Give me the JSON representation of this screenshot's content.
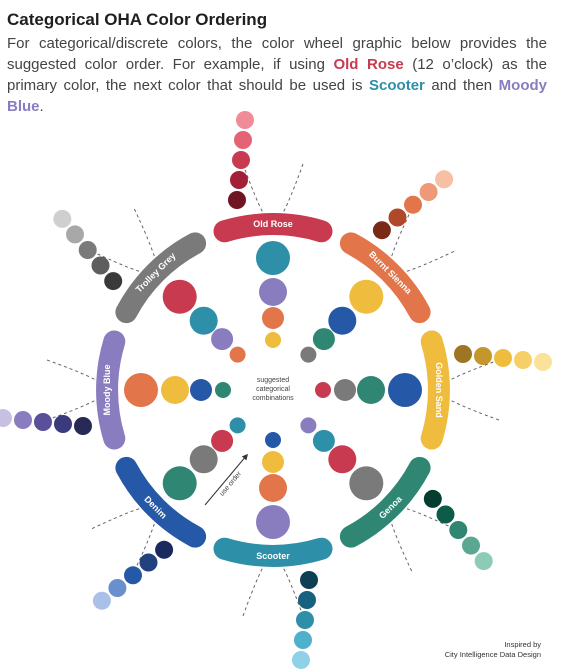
{
  "title": "Categorical OHA Color Ordering",
  "description": {
    "part1": "For categorical/discrete colors, the color wheel graphic below provides the suggested color order. For example, if using ",
    "primary_name": "Old Rose",
    "part2": " (12 o’clock) as the primary color, the next color that should be used is ",
    "second_name": "Scooter",
    "part3": " and then ",
    "third_name": "Moody Blue",
    "part4": "."
  },
  "center_label": [
    "suggested",
    "categorical",
    "combinations"
  ],
  "use_order_label": "use order",
  "credit": [
    "Inspired by",
    "City Intelligence Data Design"
  ],
  "color_families": [
    {
      "name": "Old Rose",
      "color": "#c73a4f",
      "shades": [
        "#6e1423",
        "#a31f38",
        "#c73a4f",
        "#e46476",
        "#f08c98"
      ]
    },
    {
      "name": "Burnt Sienna",
      "color": "#e2754a",
      "shades": [
        "#7a2a14",
        "#b2482a",
        "#e2754a",
        "#ef9a77",
        "#f7bfa4"
      ]
    },
    {
      "name": "Golden Sand",
      "color": "#f0bc3d",
      "shades": [
        "#9e7522",
        "#c4962c",
        "#f0bc3d",
        "#f6cf66",
        "#fbe29a"
      ]
    },
    {
      "name": "Genoa",
      "color": "#2f8673",
      "shades": [
        "#053d2e",
        "#0c5c49",
        "#2f8673",
        "#5aa891",
        "#8ccbb8"
      ]
    },
    {
      "name": "Scooter",
      "color": "#2e8fa8",
      "shades": [
        "#0f3f55",
        "#17617e",
        "#2e8fa8",
        "#4fb0cc",
        "#8fd2e8"
      ]
    },
    {
      "name": "Denim",
      "color": "#2658a8",
      "shades": [
        "#1a2a5e",
        "#22417e",
        "#2658a8",
        "#6a8fce",
        "#a9c1e8"
      ]
    },
    {
      "name": "Moody Blue",
      "color": "#8a7dbf",
      "shades": [
        "#272957",
        "#3a3a7c",
        "#5a4f9a",
        "#8a7dbf",
        "#c8c0e3"
      ]
    },
    {
      "name": "Trolley Grey",
      "color": "#7a7a7a",
      "shades": [
        "#3a3a3a",
        "#5e5e5e",
        "#7a7a7a",
        "#a8a8a8",
        "#cfcfcf"
      ]
    }
  ],
  "suggested_order": [
    "Old Rose",
    "Scooter",
    "Moody Blue",
    "Burnt Sienna",
    "Golden Sand",
    "Denim",
    "Genoa",
    "Trolley Grey"
  ]
}
